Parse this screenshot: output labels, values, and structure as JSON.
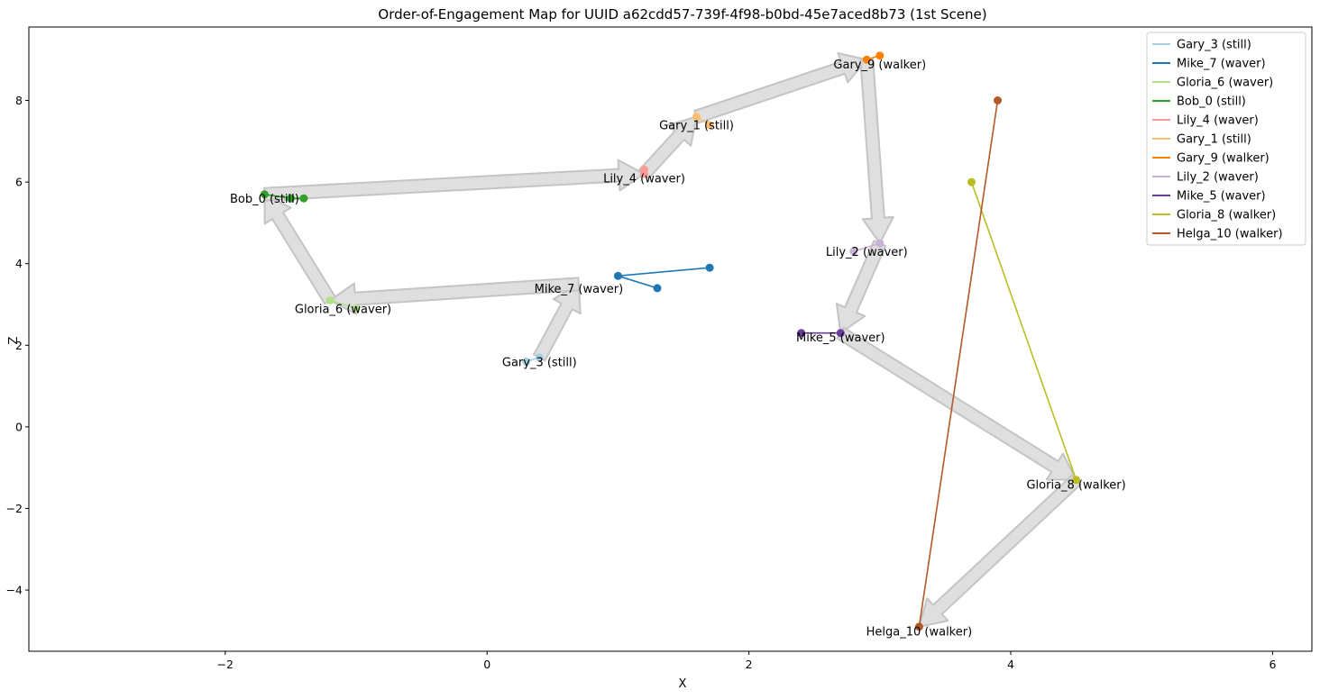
{
  "chart_data": {
    "type": "line",
    "title": "Order-of-Engagement Map for UUID a62cdd57-739f-4f98-b0bd-45e7aced8b73 (1st Scene)",
    "xlabel": "X",
    "ylabel": "Z",
    "xlim": [
      -3.5,
      6.3
    ],
    "ylim": [
      -5.5,
      9.8
    ],
    "xticks": [
      -2,
      0,
      2,
      4,
      6
    ],
    "yticks": [
      -4,
      -2,
      0,
      2,
      4,
      6,
      8
    ],
    "grid": false,
    "legend_position": "top-right",
    "series": [
      {
        "name": "Gary_3 (still)",
        "color": "#a6cee3",
        "x": [
          0.3,
          0.4
        ],
        "z": [
          1.6,
          1.7
        ]
      },
      {
        "name": "Mike_7 (waver)",
        "color": "#1f78b4",
        "x": [
          1.3,
          1.0,
          1.7
        ],
        "z": [
          3.4,
          3.7,
          3.9
        ]
      },
      {
        "name": "Gloria_6 (waver)",
        "color": "#b2df8a",
        "x": [
          -1.2,
          -1.0
        ],
        "z": [
          3.1,
          2.9
        ]
      },
      {
        "name": "Bob_0 (still)",
        "color": "#33a02c",
        "x": [
          -1.7,
          -1.5,
          -1.4
        ],
        "z": [
          5.7,
          5.6,
          5.6
        ]
      },
      {
        "name": "Lily_4 (waver)",
        "color": "#fb9a99",
        "x": [
          1.2,
          1.2
        ],
        "z": [
          6.2,
          6.3
        ]
      },
      {
        "name": "Gary_1 (still)",
        "color": "#fdbf6f",
        "x": [
          1.6,
          1.7
        ],
        "z": [
          7.6,
          7.4
        ]
      },
      {
        "name": "Gary_9 (walker)",
        "color": "#ff7f00",
        "x": [
          2.9,
          3.0
        ],
        "z": [
          9.0,
          9.1
        ]
      },
      {
        "name": "Lily_2 (waver)",
        "color": "#cab2d6",
        "x": [
          2.8,
          3.0
        ],
        "z": [
          4.3,
          4.5
        ]
      },
      {
        "name": "Mike_5 (waver)",
        "color": "#6a3d9a",
        "x": [
          2.4,
          2.7
        ],
        "z": [
          2.3,
          2.3
        ]
      },
      {
        "name": "Gloria_8 (walker)",
        "color": "#bcbd22",
        "x": [
          3.7,
          4.5
        ],
        "z": [
          6.0,
          -1.3
        ]
      },
      {
        "name": "Helga_10 (walker)",
        "color": "#b15928",
        "x": [
          3.9,
          3.3
        ],
        "z": [
          8.0,
          -4.9
        ]
      }
    ],
    "annotations": [
      {
        "text": "Gary_3 (still)",
        "x": 0.4,
        "z": 1.6
      },
      {
        "text": "Mike_7 (waver)",
        "x": 0.7,
        "z": 3.4
      },
      {
        "text": "Gloria_6 (waver)",
        "x": -1.1,
        "z": 2.9
      },
      {
        "text": "Bob_0 (still)",
        "x": -1.7,
        "z": 5.6
      },
      {
        "text": "Lily_4 (waver)",
        "x": 1.2,
        "z": 6.1
      },
      {
        "text": "Gary_1 (still)",
        "x": 1.6,
        "z": 7.4
      },
      {
        "text": "Gary_9 (walker)",
        "x": 3.0,
        "z": 8.9
      },
      {
        "text": "Lily_2 (waver)",
        "x": 2.9,
        "z": 4.3
      },
      {
        "text": "Mike_5 (waver)",
        "x": 2.7,
        "z": 2.2
      },
      {
        "text": "Gloria_8 (walker)",
        "x": 4.5,
        "z": -1.4
      },
      {
        "text": "Helga_10 (walker)",
        "x": 3.3,
        "z": -5.0
      }
    ],
    "engagement_order": [
      {
        "x": 0.4,
        "z": 1.7
      },
      {
        "x": 0.7,
        "z": 3.5
      },
      {
        "x": -1.2,
        "z": 3.1
      },
      {
        "x": -1.7,
        "z": 5.7
      },
      {
        "x": 1.2,
        "z": 6.2
      },
      {
        "x": 1.6,
        "z": 7.6
      },
      {
        "x": 2.9,
        "z": 9.0
      },
      {
        "x": 3.0,
        "z": 4.5
      },
      {
        "x": 2.7,
        "z": 2.3
      },
      {
        "x": 4.5,
        "z": -1.3
      },
      {
        "x": 3.3,
        "z": -4.9
      }
    ]
  }
}
